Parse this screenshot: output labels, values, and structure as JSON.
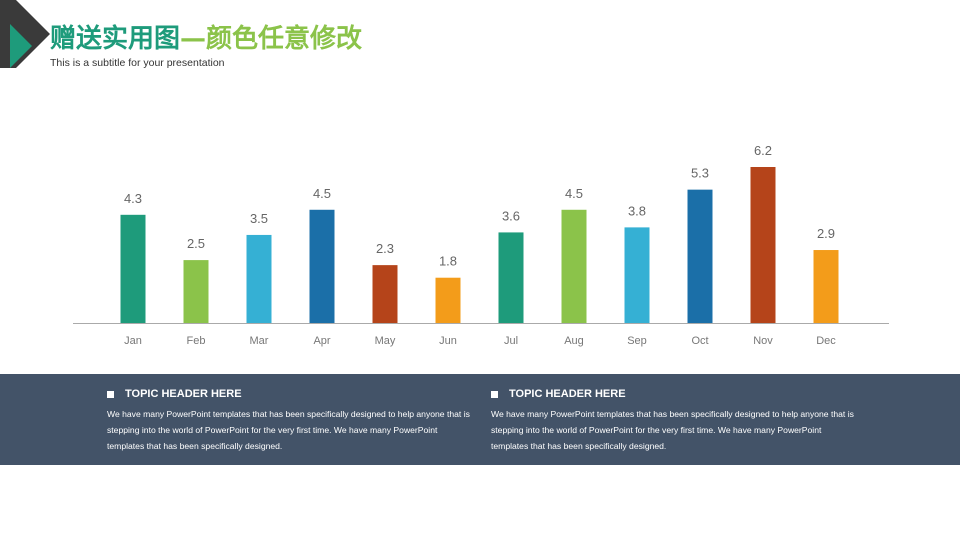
{
  "header": {
    "title_part1": "赠送实用图",
    "title_part2": "—颜色任意修改",
    "subtitle": "This is a subtitle for your presentation"
  },
  "colors": {
    "teal": "#1e9b7b",
    "green": "#8bc34a",
    "cyan": "#35b0d4",
    "blue": "#1b6fa8",
    "rust": "#b5441a",
    "orange": "#f39c1a",
    "band": "#435368"
  },
  "chart_data": {
    "type": "bar",
    "categories": [
      "Jan",
      "Feb",
      "Mar",
      "Apr",
      "May",
      "Jun",
      "Jul",
      "Aug",
      "Sep",
      "Oct",
      "Nov",
      "Dec"
    ],
    "values": [
      4.3,
      2.5,
      3.5,
      4.5,
      2.3,
      1.8,
      3.6,
      4.5,
      3.8,
      5.3,
      6.2,
      2.9
    ],
    "bar_colors": [
      "#1e9b7b",
      "#8bc34a",
      "#35b0d4",
      "#1b6fa8",
      "#b5441a",
      "#f39c1a",
      "#1e9b7b",
      "#8bc34a",
      "#35b0d4",
      "#1b6fa8",
      "#b5441a",
      "#f39c1a"
    ],
    "ylim": [
      0,
      6.2
    ],
    "grid": false,
    "data_labels": true
  },
  "topics": [
    {
      "header": "TOPIC HEADER HERE",
      "body": "We have many PowerPoint templates that has been specifically designed to help anyone that is stepping into the world of PowerPoint for the very first time. We have many PowerPoint templates that has been specifically designed."
    },
    {
      "header": "TOPIC HEADER HERE",
      "body": "We have many PowerPoint templates that has been specifically designed to help anyone that is stepping into the world of PowerPoint for the very first time. We have many PowerPoint templates that has been specifically designed."
    }
  ]
}
